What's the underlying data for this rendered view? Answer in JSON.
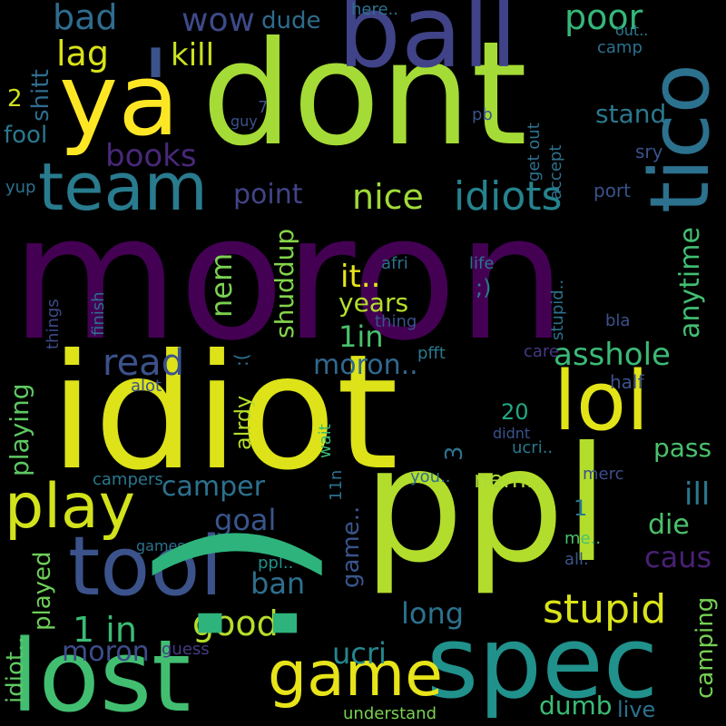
{
  "words": [
    {
      "text": "moron",
      "color": "#440154"
    },
    {
      "text": "idiot",
      "color": "#dde318"
    },
    {
      "text": "dont",
      "color": "#a5db36"
    },
    {
      "text": "ppl",
      "color": "#b2dd2d"
    },
    {
      "text": ":)",
      "color": "#2eb37c"
    },
    {
      "text": "ball",
      "color": "#404387"
    },
    {
      "text": "ya",
      "color": "#fde725"
    },
    {
      "text": "spec",
      "color": "#21918c"
    },
    {
      "text": "lost",
      "color": "#42be71"
    },
    {
      "text": "tool",
      "color": "#3b528b"
    },
    {
      "text": "tico",
      "color": "#2c718e"
    },
    {
      "text": "team",
      "color": "#297b8e"
    },
    {
      "text": "play",
      "color": "#d2e21b"
    },
    {
      "text": "game",
      "color": "#e7e419"
    },
    {
      "text": "lol",
      "color": "#e2e418"
    },
    {
      "text": "'",
      "color": "#3b528b"
    },
    {
      "text": "stupid",
      "color": "#dae319"
    },
    {
      "text": "idiots",
      "color": "#25838e"
    },
    {
      "text": "wow",
      "color": "#3e4a89"
    },
    {
      "text": "nice",
      "color": "#a0da39"
    },
    {
      "text": "poor",
      "color": "#35b779"
    },
    {
      "text": "bad",
      "color": "#2f6c8e"
    },
    {
      "text": "lag",
      "color": "#d8e219"
    },
    {
      "text": "kill",
      "color": "#cae11f"
    },
    {
      "text": "dude",
      "color": "#2f6c8e"
    },
    {
      "text": "books",
      "color": "#482878"
    },
    {
      "text": "point",
      "color": "#414487"
    },
    {
      "text": "stand",
      "color": "#2a788e"
    },
    {
      "text": "read",
      "color": "#3b528b"
    },
    {
      "text": "asshole",
      "color": "#3aba76"
    },
    {
      "text": "it..",
      "color": "#e7e419"
    },
    {
      "text": "years",
      "color": "#b5de2b"
    },
    {
      "text": "1in",
      "color": "#4ac16d"
    },
    {
      "text": "moron..",
      "color": "#31688e"
    },
    {
      "text": "good",
      "color": "#b5de2b"
    },
    {
      "text": "1 in",
      "color": "#3bbb75"
    },
    {
      "text": "moron",
      "color": "#3e4c8a"
    },
    {
      "text": "goal",
      "color": "#39558c"
    },
    {
      "text": "ban",
      "color": "#2e6f8e"
    },
    {
      "text": "camper",
      "color": "#2c718e"
    },
    {
      "text": "long",
      "color": "#2c728e"
    },
    {
      "text": "ucri",
      "color": "#24878e"
    },
    {
      "text": "dumb",
      "color": "#3bbb75"
    },
    {
      "text": "pass",
      "color": "#4ac16d"
    },
    {
      "text": "ill",
      "color": "#2a788e"
    },
    {
      "text": "die",
      "color": "#4ac16d"
    },
    {
      "text": "caus",
      "color": "#482173"
    },
    {
      "text": "nem..",
      "color": "#a8db34"
    },
    {
      "text": "20",
      "color": "#22a884"
    },
    {
      "text": "live",
      "color": "#2c718e"
    },
    {
      "text": "understand",
      "color": "#7ad151"
    },
    {
      "text": "guess",
      "color": "#443a83"
    },
    {
      "text": "merc",
      "color": "#3d4e8a"
    },
    {
      "text": "you..",
      "color": "#2d708e"
    },
    {
      "text": "me..",
      "color": "#4ac16d"
    },
    {
      "text": "all.",
      "color": "#39558c"
    },
    {
      "text": "me..",
      "color": "#b5de2b"
    },
    {
      "text": "ppl..",
      "color": "#21918c"
    },
    {
      "text": "games..",
      "color": "#2c718e"
    },
    {
      "text": "campers",
      "color": "#2a788e"
    },
    {
      "text": "alot",
      "color": "#3b528b"
    },
    {
      "text": "half",
      "color": "#3b528b"
    },
    {
      "text": "care",
      "color": "#443983"
    },
    {
      "text": "pfft",
      "color": "#2a788e"
    },
    {
      "text": "thing",
      "color": "#3b528b"
    },
    {
      "text": "afri",
      "color": "#2c718e"
    },
    {
      "text": "life",
      "color": "#2c728e"
    },
    {
      "text": ";)",
      "color": "#2a788e"
    },
    {
      "text": "bla",
      "color": "#3b528b"
    },
    {
      "text": "ucri..",
      "color": "#2a788e"
    },
    {
      "text": "didnt",
      "color": "#3b528b"
    },
    {
      "text": "1",
      "color": "#2a788e"
    },
    {
      "text": "2",
      "color": "#cde11d"
    },
    {
      "text": "fool",
      "color": "#2a788e"
    },
    {
      "text": "yup",
      "color": "#2c718e"
    },
    {
      "text": "here..",
      "color": "#2c718e"
    },
    {
      "text": "out..",
      "color": "#2a788e"
    },
    {
      "text": "camp",
      "color": "#2c718e"
    },
    {
      "text": "pb",
      "color": "#3b528b"
    },
    {
      "text": "sry",
      "color": "#3b528b"
    },
    {
      "text": "port",
      "color": "#3b528b"
    },
    {
      "text": "guy",
      "color": "#3b528b"
    },
    {
      "text": "7",
      "color": "#3b528b"
    },
    {
      "text": "anytime",
      "color": "#42be71"
    },
    {
      "text": "shuddup",
      "color": "#84d44b"
    },
    {
      "text": "nem",
      "color": "#7ad151"
    },
    {
      "text": "alrdy",
      "color": "#b5de2b"
    },
    {
      "text": "3",
      "color": "#2c728e"
    },
    {
      "text": "game..",
      "color": "#39558c"
    },
    {
      "text": ":(",
      "color": "#2c718e"
    },
    {
      "text": "wait",
      "color": "#3bbb75"
    },
    {
      "text": "11n",
      "color": "#2c718e"
    },
    {
      "text": "shitt",
      "color": "#2f6c8e"
    },
    {
      "text": "playing",
      "color": "#5ec962"
    },
    {
      "text": "played",
      "color": "#6ece58"
    },
    {
      "text": "idiot..",
      "color": "#5ec962"
    },
    {
      "text": "camping",
      "color": "#75d054"
    },
    {
      "text": "finish",
      "color": "#2c718e"
    },
    {
      "text": "things",
      "color": "#3e4a89"
    },
    {
      "text": "get out",
      "color": "#2c718e"
    },
    {
      "text": "accept",
      "color": "#2c718e"
    },
    {
      "text": "stupid..",
      "color": "#2c718e"
    }
  ]
}
